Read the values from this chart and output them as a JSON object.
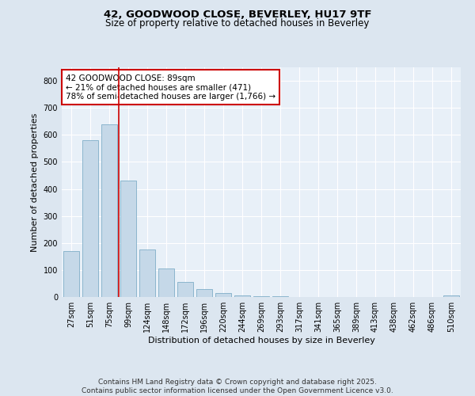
{
  "title1": "42, GOODWOOD CLOSE, BEVERLEY, HU17 9TF",
  "title2": "Size of property relative to detached houses in Beverley",
  "xlabel": "Distribution of detached houses by size in Beverley",
  "ylabel": "Number of detached properties",
  "bar_labels": [
    "27sqm",
    "51sqm",
    "75sqm",
    "99sqm",
    "124sqm",
    "148sqm",
    "172sqm",
    "196sqm",
    "220sqm",
    "244sqm",
    "269sqm",
    "293sqm",
    "317sqm",
    "341sqm",
    "365sqm",
    "389sqm",
    "413sqm",
    "438sqm",
    "462sqm",
    "486sqm",
    "510sqm"
  ],
  "bar_values": [
    170,
    580,
    640,
    430,
    175,
    105,
    55,
    30,
    15,
    5,
    3,
    2,
    1,
    0,
    0,
    0,
    0,
    0,
    0,
    0,
    5
  ],
  "bar_color": "#c5d8e8",
  "bar_edge_color": "#7faec8",
  "vline_x_index": 2.5,
  "vline_color": "#cc0000",
  "annotation_text": "42 GOODWOOD CLOSE: 89sqm\n← 21% of detached houses are smaller (471)\n78% of semi-detached houses are larger (1,766) →",
  "annotation_box_color": "#ffffff",
  "annotation_box_edge": "#cc0000",
  "ylim": [
    0,
    850
  ],
  "yticks": [
    0,
    100,
    200,
    300,
    400,
    500,
    600,
    700,
    800
  ],
  "background_color": "#dce6f0",
  "plot_bg_color": "#e8f0f8",
  "grid_color": "#ffffff",
  "footer_text": "Contains HM Land Registry data © Crown copyright and database right 2025.\nContains public sector information licensed under the Open Government Licence v3.0.",
  "title_fontsize": 9.5,
  "subtitle_fontsize": 8.5,
  "axis_label_fontsize": 8,
  "tick_fontsize": 7,
  "annotation_fontsize": 7.5,
  "footer_fontsize": 6.5
}
